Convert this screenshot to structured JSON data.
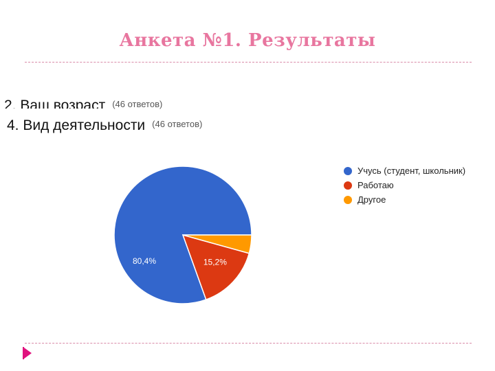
{
  "slide": {
    "title": "Анкета №1. Результаты"
  },
  "questions": [
    {
      "text": "2. Ваш возраст",
      "responses": "(46 ответов)"
    },
    {
      "text": "4. Вид деятельности",
      "responses": "(46 ответов)"
    }
  ],
  "chart_data": {
    "type": "pie",
    "categories": [
      "Учусь (студент, школьник)",
      "Работаю",
      "Другое"
    ],
    "values": [
      80.4,
      15.2,
      4.3
    ],
    "colors": [
      "#3366cc",
      "#dc3912",
      "#ff9900"
    ],
    "data_labels": [
      "80,4%",
      "15,2%",
      ""
    ],
    "legend_position": "right",
    "start_angle": "east",
    "direction": "counterclockwise"
  }
}
